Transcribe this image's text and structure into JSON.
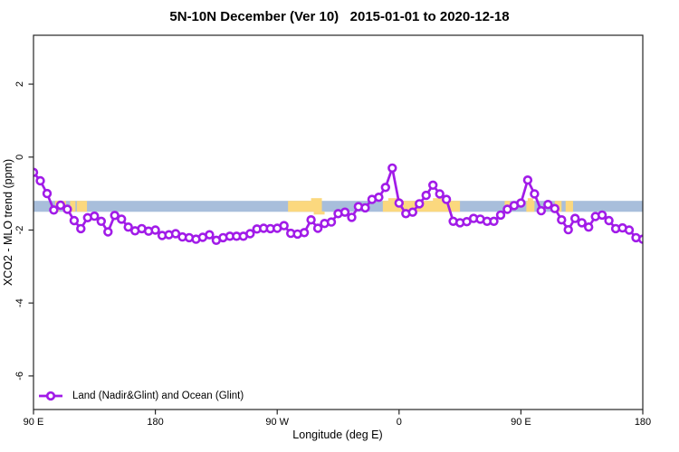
{
  "header": {
    "title": "5N-10N December (Ver 10)   2015-01-01 to 2020-12-18"
  },
  "axes": {
    "x_label": "Longitude (deg E)",
    "y_label": "XCO2 - MLO trend (ppm)"
  },
  "legend": {
    "label": "Land (Nadir&Glint) and Ocean (Glint)"
  },
  "colors": {
    "series_line": "#a11be8",
    "marker_fill": "#ffffff",
    "ocean_band": "#a8bedb",
    "ocean_band_pale": "#c6d4e7",
    "land_band": "#fbd87e",
    "axis": "#262626",
    "text": "#000000"
  },
  "chart_data": {
    "type": "line",
    "title": "5N-10N December (Ver 10)   2015-01-01 to 2020-12-18",
    "xlabel": "Longitude (deg E)",
    "ylabel": "XCO2 - MLO trend (ppm)",
    "xlim": [
      90,
      540
    ],
    "ylim": [
      -6.92,
      3.34
    ],
    "grid": false,
    "legend_position": "bottom-left-inside",
    "x_ticks": [
      {
        "deg": 90,
        "label": "90 E"
      },
      {
        "deg": 180,
        "label": "180"
      },
      {
        "deg": 270,
        "label": "90 W"
      },
      {
        "deg": 360,
        "label": "0"
      },
      {
        "deg": 450,
        "label": "90 E"
      },
      {
        "deg": 540,
        "label": "180"
      }
    ],
    "y_ticks": [
      {
        "value": 2,
        "label": "2"
      },
      {
        "value": 0,
        "label": "0"
      },
      {
        "value": -2,
        "label": "-2"
      },
      {
        "value": -4,
        "label": "-4"
      },
      {
        "value": -6,
        "label": "-6"
      }
    ],
    "series": [
      {
        "name": "Land (Nadir&Glint) and Ocean (Glint)",
        "marker": "open-circle",
        "color": "#a11be8",
        "x_start": 90,
        "x_step": 5,
        "values": [
          -0.42,
          -0.65,
          -1.0,
          -1.45,
          -1.32,
          -1.43,
          -1.74,
          -1.96,
          -1.66,
          -1.62,
          -1.76,
          -2.05,
          -1.6,
          -1.7,
          -1.92,
          -2.02,
          -1.96,
          -2.03,
          -2.0,
          -2.15,
          -2.13,
          -2.1,
          -2.19,
          -2.21,
          -2.25,
          -2.2,
          -2.13,
          -2.28,
          -2.21,
          -2.17,
          -2.17,
          -2.17,
          -2.1,
          -1.97,
          -1.95,
          -1.96,
          -1.95,
          -1.88,
          -2.09,
          -2.11,
          -2.07,
          -1.72,
          -1.95,
          -1.82,
          -1.78,
          -1.55,
          -1.51,
          -1.65,
          -1.36,
          -1.39,
          -1.16,
          -1.1,
          -0.83,
          -0.3,
          -1.26,
          -1.55,
          -1.51,
          -1.28,
          -1.05,
          -0.77,
          -1.01,
          -1.16,
          -1.76,
          -1.8,
          -1.77,
          -1.68,
          -1.7,
          -1.76,
          -1.76,
          -1.59,
          -1.43,
          -1.33,
          -1.26,
          -0.63,
          -1.01,
          -1.47,
          -1.3,
          -1.41,
          -1.72,
          -1.99,
          -1.68,
          -1.8,
          -1.92,
          -1.63,
          -1.59,
          -1.74,
          -1.96,
          -1.94,
          -2.0,
          -2.21,
          -2.25
        ]
      }
    ],
    "map_band": {
      "description": "ocean-land strip of latitude band 5N-10N",
      "y_range": [
        -1.2,
        -1.5
      ],
      "land_segments": [
        [
          106,
          109
        ],
        [
          112,
          114
        ],
        [
          117,
          121
        ],
        [
          122,
          129.5
        ],
        [
          278,
          303
        ],
        [
          348,
          405
        ],
        [
          438,
          442
        ],
        [
          454,
          460
        ],
        [
          475,
          480
        ],
        [
          483,
          488.5
        ]
      ],
      "coast_bumps": [
        {
          "range": [
            295,
            303
          ],
          "side": "top",
          "color": "land"
        },
        {
          "range": [
            297,
            305
          ],
          "side": "bottom",
          "color": "land"
        },
        {
          "range": [
            338,
            347
          ],
          "side": "top",
          "color": "pale"
        },
        {
          "range": [
            352,
            361
          ],
          "side": "top",
          "color": "land"
        },
        {
          "range": [
            385,
            395
          ],
          "side": "top",
          "color": "land"
        },
        {
          "range": [
            455,
            459
          ],
          "side": "top",
          "color": "land"
        }
      ]
    }
  }
}
